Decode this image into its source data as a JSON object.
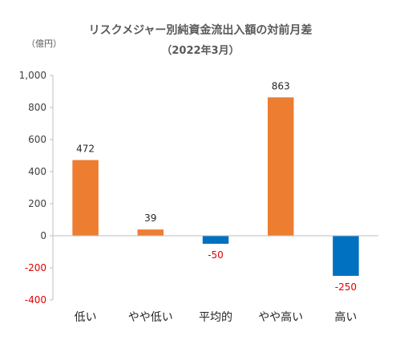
{
  "chart_data": {
    "type": "bar",
    "title": "リスクメジャー別純資金流出入額の対前月差",
    "subtitle": "（2022年3月）",
    "unit_label": "（億円）",
    "categories": [
      "低い",
      "やや低い",
      "平均的",
      "やや高い",
      "高い"
    ],
    "values": [
      472,
      39,
      -50,
      863,
      -250
    ],
    "value_labels": [
      "472",
      "39",
      "-50",
      "863",
      "-250"
    ],
    "ylim": [
      -400,
      1000
    ],
    "yticks": [
      -400,
      -200,
      0,
      200,
      400,
      600,
      800,
      1000
    ],
    "ytick_labels": [
      "-400",
      "-200",
      "0",
      "200",
      "400",
      "600",
      "800",
      "1,000"
    ],
    "grid": false,
    "colors": {
      "positive": "#ed7d31",
      "negative": "#0070c0",
      "negative_text": "#e00000",
      "axis": "#bfbfbf"
    }
  }
}
